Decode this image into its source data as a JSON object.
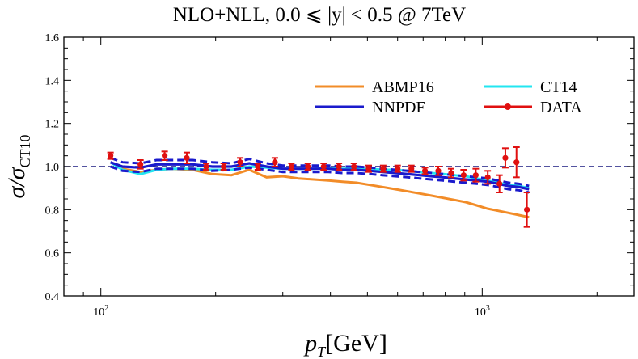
{
  "chart_data": {
    "type": "line",
    "title": "NLO+NLL, 0.0 ⩽ |y| < 0.5 @ 7TeV",
    "xlabel": {
      "main": "p",
      "sub": "T",
      "unit": "[GeV]"
    },
    "ylabel": {
      "main": "σ/σ",
      "sub": "CT10"
    },
    "x_scale": "log",
    "xlim": [
      80,
      2500
    ],
    "ylim": [
      0.4,
      1.6
    ],
    "x_major_ticks": [
      {
        "value": 100,
        "base": "10",
        "exp": "2"
      },
      {
        "value": 1000,
        "base": "10",
        "exp": "3"
      }
    ],
    "y_ticks": [
      {
        "value": 0.4,
        "label": "0.4"
      },
      {
        "value": 0.6,
        "label": "0.6"
      },
      {
        "value": 0.8,
        "label": "0.8"
      },
      {
        "value": 1.0,
        "label": "1.0"
      },
      {
        "value": 1.2,
        "label": "1.2"
      },
      {
        "value": 1.4,
        "label": "1.4"
      },
      {
        "value": 1.6,
        "label": "1.6"
      }
    ],
    "reference_line": 1.0,
    "grid": false,
    "legend_position": "top-right",
    "x": [
      106,
      114,
      127,
      140,
      153,
      174,
      196,
      220,
      245,
      272,
      300,
      330,
      362,
      395,
      430,
      468,
      507,
      548,
      592,
      638,
      686,
      737,
      790,
      846,
      905,
      967,
      1032,
      1101,
      1172,
      1248,
      1327
    ],
    "series": [
      {
        "name": "ABMP16",
        "kind": "line",
        "color": "#f28c28",
        "values": [
          1.02,
          0.99,
          0.975,
          0.985,
          0.99,
          0.985,
          0.965,
          0.96,
          0.985,
          0.95,
          0.955,
          0.945,
          0.94,
          0.935,
          0.93,
          0.925,
          0.915,
          0.905,
          0.895,
          0.885,
          0.875,
          0.865,
          0.855,
          0.845,
          0.835,
          0.82,
          0.805,
          0.795,
          0.785,
          0.775,
          0.765
        ]
      },
      {
        "name": "CT14",
        "kind": "line",
        "color": "#22e6f0",
        "values": [
          1.02,
          0.985,
          0.965,
          0.985,
          0.99,
          0.99,
          0.985,
          0.985,
          1.0,
          0.995,
          0.99,
          0.99,
          0.99,
          0.995,
          0.99,
          0.99,
          0.99,
          0.985,
          0.985,
          0.98,
          0.975,
          0.97,
          0.965,
          0.96,
          0.955,
          0.945,
          0.935,
          0.925,
          0.915,
          0.91,
          0.9
        ]
      },
      {
        "name": "NNPDF",
        "kind": "band",
        "color": "#1a1acc",
        "values": [
          1.02,
          1.0,
          0.995,
          1.01,
          1.01,
          1.01,
          1.0,
          1.0,
          1.015,
          1.0,
          0.99,
          0.99,
          0.99,
          0.99,
          0.985,
          0.985,
          0.98,
          0.975,
          0.97,
          0.965,
          0.96,
          0.955,
          0.95,
          0.945,
          0.94,
          0.935,
          0.93,
          0.92,
          0.91,
          0.905,
          0.895
        ],
        "upper": [
          1.04,
          1.02,
          1.015,
          1.03,
          1.03,
          1.03,
          1.02,
          1.015,
          1.035,
          1.015,
          1.005,
          1.005,
          1.005,
          1.005,
          1.0,
          1.0,
          0.995,
          0.99,
          0.985,
          0.98,
          0.975,
          0.97,
          0.965,
          0.96,
          0.955,
          0.95,
          0.945,
          0.935,
          0.925,
          0.92,
          0.91
        ],
        "lower": [
          1.0,
          0.98,
          0.975,
          0.99,
          0.99,
          0.99,
          0.98,
          0.985,
          0.995,
          0.985,
          0.975,
          0.975,
          0.975,
          0.975,
          0.97,
          0.97,
          0.965,
          0.96,
          0.955,
          0.95,
          0.945,
          0.94,
          0.935,
          0.93,
          0.925,
          0.92,
          0.915,
          0.905,
          0.895,
          0.89,
          0.88
        ]
      },
      {
        "name": "DATA",
        "kind": "points",
        "color": "#e01010",
        "x": [
          106,
          127,
          147,
          168,
          189,
          210,
          232,
          258,
          286,
          316,
          349,
          384,
          421,
          461,
          504,
          550,
          600,
          652,
          708,
          767,
          829,
          894,
          962,
          1034,
          1110,
          1150,
          1230,
          1310
        ],
        "values": [
          1.05,
          1.01,
          1.05,
          1.04,
          1.0,
          1.0,
          1.02,
          1.0,
          1.02,
          1.0,
          1.0,
          1.0,
          1.0,
          1.0,
          0.99,
          0.99,
          0.99,
          0.99,
          0.98,
          0.98,
          0.97,
          0.96,
          0.96,
          0.95,
          0.92,
          1.04,
          1.02,
          0.8
        ],
        "errors": [
          0.015,
          0.02,
          0.02,
          0.025,
          0.015,
          0.015,
          0.02,
          0.015,
          0.02,
          0.015,
          0.015,
          0.015,
          0.015,
          0.015,
          0.015,
          0.015,
          0.015,
          0.015,
          0.015,
          0.02,
          0.02,
          0.025,
          0.03,
          0.03,
          0.04,
          0.045,
          0.07,
          0.08
        ]
      }
    ]
  }
}
